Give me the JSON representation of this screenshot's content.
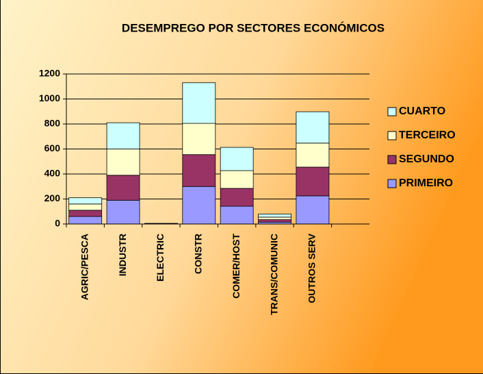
{
  "chart_data": {
    "type": "stacked_bar",
    "title": "DESEMPREGO POR SECTORES ECONÓMICOS",
    "categories": [
      "AGRIC/PESCA",
      "INDUSTR",
      "ELECTRIC",
      "CONSTR",
      "COMER/HOST",
      "TRANS/COMUNIC",
      "OUTROS SERV",
      null
    ],
    "series": [
      {
        "name": "PRIMEIRO",
        "color": "#9999ff",
        "values": [
          60,
          190,
          2,
          300,
          142,
          15,
          225,
          null
        ]
      },
      {
        "name": "SEGUNDO",
        "color": "#993366",
        "values": [
          50,
          200,
          1,
          255,
          143,
          20,
          230,
          null
        ]
      },
      {
        "name": "TERCEIRO",
        "color": "#ffffcc",
        "values": [
          50,
          210,
          1,
          250,
          142,
          20,
          192,
          null
        ]
      },
      {
        "name": "CUARTO",
        "color": "#ccffff",
        "values": [
          50,
          210,
          1,
          325,
          186,
          25,
          251,
          null
        ]
      }
    ],
    "ylim": [
      0,
      1200
    ],
    "yticks": [
      0,
      200,
      400,
      600,
      800,
      1000,
      1200
    ],
    "grid": true,
    "legend": "right"
  }
}
